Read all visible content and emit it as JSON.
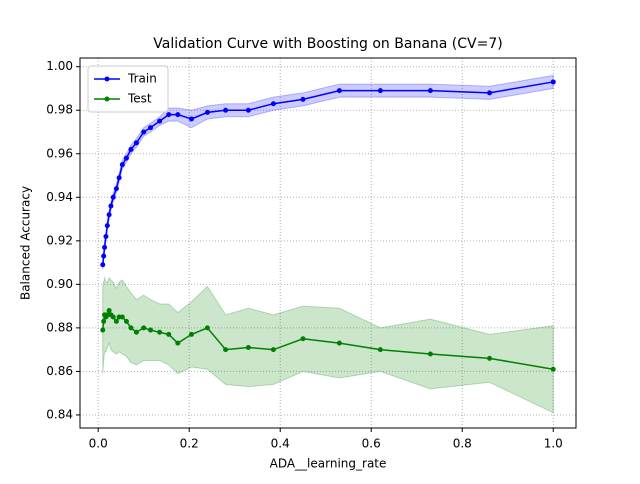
{
  "chart_data": {
    "type": "line",
    "title": "Validation Curve with Boosting on Banana (CV=7)",
    "x_label": "ADA__learning_rate",
    "y_label": "Balanced Accuracy",
    "x": [
      0.01,
      0.012,
      0.014,
      0.017,
      0.02,
      0.024,
      0.028,
      0.033,
      0.04,
      0.046,
      0.053,
      0.062,
      0.072,
      0.084,
      0.1,
      0.115,
      0.135,
      0.155,
      0.175,
      0.205,
      0.24,
      0.28,
      0.33,
      0.385,
      0.45,
      0.53,
      0.62,
      0.73,
      0.86,
      1.0
    ],
    "series": [
      {
        "name": "Train",
        "color": "#0000ff",
        "values": [
          0.909,
          0.913,
          0.917,
          0.922,
          0.927,
          0.932,
          0.936,
          0.94,
          0.944,
          0.949,
          0.955,
          0.958,
          0.962,
          0.965,
          0.97,
          0.972,
          0.975,
          0.978,
          0.978,
          0.976,
          0.979,
          0.98,
          0.98,
          0.983,
          0.985,
          0.989,
          0.989,
          0.989,
          0.988,
          0.993
        ],
        "spread": [
          0.002,
          0.002,
          0.002,
          0.002,
          0.002,
          0.002,
          0.002,
          0.002,
          0.002,
          0.002,
          0.002,
          0.002,
          0.002,
          0.002,
          0.002,
          0.002,
          0.002,
          0.003,
          0.003,
          0.004,
          0.003,
          0.003,
          0.003,
          0.003,
          0.003,
          0.003,
          0.003,
          0.003,
          0.003,
          0.003
        ]
      },
      {
        "name": "Test",
        "color": "#008000",
        "values": [
          0.879,
          0.883,
          0.886,
          0.885,
          0.886,
          0.888,
          0.886,
          0.885,
          0.883,
          0.885,
          0.885,
          0.883,
          0.88,
          0.878,
          0.88,
          0.879,
          0.878,
          0.877,
          0.873,
          0.877,
          0.88,
          0.87,
          0.871,
          0.87,
          0.875,
          0.873,
          0.87,
          0.868,
          0.866,
          0.861
        ],
        "spread": [
          0.02,
          0.018,
          0.017,
          0.016,
          0.015,
          0.015,
          0.016,
          0.016,
          0.015,
          0.016,
          0.017,
          0.016,
          0.016,
          0.015,
          0.015,
          0.014,
          0.013,
          0.014,
          0.014,
          0.015,
          0.019,
          0.016,
          0.018,
          0.016,
          0.015,
          0.016,
          0.01,
          0.016,
          0.011,
          0.02
        ]
      }
    ],
    "xlim": [
      -0.04,
      1.05
    ],
    "xticks": [
      {
        "value": 0,
        "label": "0.0"
      },
      0.2,
      0.4,
      0.6,
      0.8,
      {
        "value": 1,
        "label": "1.0"
      }
    ],
    "ylim": [
      0.834,
      1.004
    ],
    "yticks": [
      {
        "value": 0.84,
        "label": "0.84"
      },
      {
        "value": 0.86,
        "label": "0.86"
      },
      {
        "value": 0.88,
        "label": "0.88"
      },
      {
        "value": 0.9,
        "label": "0.90"
      },
      {
        "value": 0.92,
        "label": "0.92"
      },
      {
        "value": 0.94,
        "label": "0.94"
      },
      {
        "value": 0.96,
        "label": "0.96"
      },
      {
        "value": 0.98,
        "label": "0.98"
      },
      {
        "value": 1.0,
        "label": "1.00"
      }
    ],
    "grid": true,
    "legend": "upper left"
  }
}
